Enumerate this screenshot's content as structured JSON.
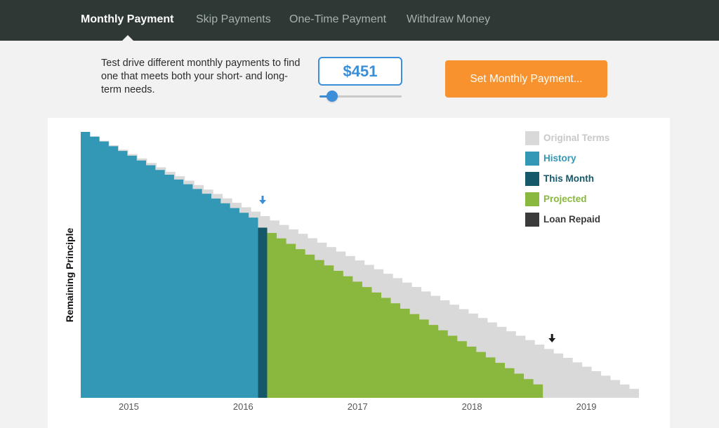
{
  "nav": {
    "tabs": [
      {
        "label": "Monthly Payment",
        "active": true
      },
      {
        "label": "Skip Payments",
        "active": false
      },
      {
        "label": "One-Time Payment",
        "active": false
      },
      {
        "label": "Withdraw Money",
        "active": false
      }
    ]
  },
  "controls": {
    "description": "Test drive different monthly payments to find one that meets both your short- and long-term needs.",
    "amount": "$451",
    "slider_level": 0.15,
    "set_button": "Set Monthly Payment..."
  },
  "colors": {
    "original": "#d9d9d9",
    "history": "#3397b6",
    "this_month": "#14586a",
    "projected": "#8ab83e",
    "loan_repaid": "#3a3a3a",
    "accent": "#3b8ed8",
    "button": "#f7922f"
  },
  "chart_data": {
    "type": "area",
    "ylabel": "Remaining Principle",
    "xlabel": "",
    "x_ticks": [
      "2015",
      "2016",
      "2017",
      "2018",
      "2019"
    ],
    "legend": [
      {
        "label": "Original Terms",
        "key": "original"
      },
      {
        "label": "History",
        "key": "history"
      },
      {
        "label": "This Month",
        "key": "this_month"
      },
      {
        "label": "Projected",
        "key": "projected"
      },
      {
        "label": "Loan Repaid",
        "key": "loan_repaid"
      }
    ],
    "legend_position": "top-right",
    "x_start": 2014.58,
    "x_end": 2019.46,
    "ylim": [
      0,
      1
    ],
    "original_terms": {
      "start": 2014.58,
      "end": 2019.46,
      "start_value": 1.0,
      "step": "monthly"
    },
    "history": {
      "start": 2014.58,
      "end": 2016.13
    },
    "this_month": {
      "date": 2016.13,
      "value": 0.64
    },
    "projected": {
      "start": 2016.21,
      "end": 2018.62,
      "start_value": 0.62
    },
    "loan_repaid_marker": 2018.7,
    "this_month_marker": 2016.17
  }
}
